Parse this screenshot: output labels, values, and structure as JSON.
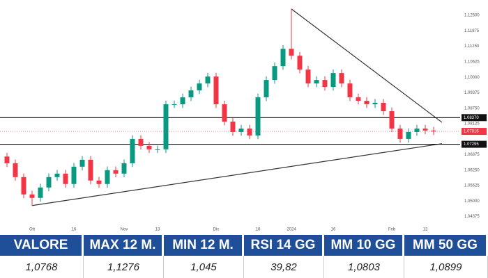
{
  "chart_data": {
    "type": "candlestick",
    "categories": [
      null,
      null,
      null,
      "Ott",
      null,
      null,
      null,
      null,
      "16",
      null,
      null,
      null,
      null,
      null,
      "Nov",
      null,
      null,
      null,
      "13",
      null,
      null,
      null,
      null,
      null,
      null,
      "Dic",
      null,
      null,
      null,
      null,
      "18",
      null,
      null,
      null,
      "2024",
      null,
      null,
      null,
      null,
      "16",
      null,
      null,
      null,
      null,
      null,
      null,
      "Feb",
      null,
      null,
      null,
      "12",
      null
    ],
    "open": [
      1.068,
      1.0653,
      1.0597,
      1.0527,
      1.0513,
      1.0555,
      1.0597,
      1.0611,
      1.0569,
      1.0639,
      1.0667,
      1.0583,
      1.0569,
      1.0625,
      1.0611,
      1.0653,
      1.0751,
      1.0723,
      1.0709,
      1.0709,
      1.0891,
      1.0891,
      1.0919,
      1.0947,
      1.0975,
      1.1003,
      1.0891,
      1.0821,
      1.0779,
      1.0793,
      1.0765,
      1.0919,
      1.0989,
      1.1045,
      1.1115,
      1.1087,
      1.1031,
      1.0975,
      1.0989,
      1.0961,
      1.1017,
      1.0975,
      1.0919,
      1.0905,
      1.0891,
      1.0897,
      1.0863,
      1.0793,
      1.0751,
      1.0779,
      1.0793,
      1.0785
    ],
    "high": [
      1.0695,
      1.0668,
      1.0612,
      1.0542,
      1.057,
      1.0612,
      1.0626,
      1.0626,
      1.0654,
      1.0682,
      1.0682,
      1.0598,
      1.064,
      1.064,
      1.0668,
      1.0766,
      1.0766,
      1.0738,
      1.0724,
      1.0906,
      1.0906,
      1.0934,
      1.0962,
      1.099,
      1.1018,
      1.1018,
      1.0906,
      1.0836,
      1.0808,
      1.0808,
      1.0934,
      1.1004,
      1.106,
      1.113,
      1.1276,
      1.1102,
      1.1046,
      1.1004,
      1.1004,
      1.1032,
      1.1032,
      1.099,
      1.0934,
      1.092,
      1.0912,
      1.0912,
      1.0878,
      1.0808,
      1.0794,
      1.0808,
      1.0808,
      1.08
    ],
    "low": [
      1.0638,
      1.0582,
      1.0512,
      1.0482,
      1.0498,
      1.054,
      1.0582,
      1.0554,
      1.0554,
      1.0624,
      1.0568,
      1.0554,
      1.0554,
      1.0596,
      1.0596,
      1.0638,
      1.0708,
      1.0694,
      1.0694,
      1.0694,
      1.0876,
      1.0876,
      1.0904,
      1.0932,
      1.096,
      1.0876,
      1.0806,
      1.0764,
      1.0764,
      1.075,
      1.075,
      1.0904,
      1.0974,
      1.103,
      1.1072,
      1.1016,
      1.096,
      1.096,
      1.0946,
      1.0946,
      1.096,
      1.0904,
      1.089,
      1.0876,
      1.0876,
      1.0848,
      1.0778,
      1.0736,
      1.0736,
      1.0764,
      1.077,
      1.07665
    ],
    "close": [
      1.0653,
      1.0597,
      1.0527,
      1.0513,
      1.0555,
      1.0597,
      1.0611,
      1.0569,
      1.0639,
      1.0667,
      1.0583,
      1.0569,
      1.0625,
      1.0611,
      1.0653,
      1.0751,
      1.0723,
      1.0709,
      1.0709,
      1.0891,
      1.0891,
      1.0919,
      1.0947,
      1.0975,
      1.1003,
      1.0891,
      1.0821,
      1.0779,
      1.0793,
      1.0765,
      1.0919,
      1.0989,
      1.1045,
      1.1115,
      1.1087,
      1.1031,
      1.0975,
      1.0989,
      1.0961,
      1.1017,
      1.0975,
      1.0919,
      1.0905,
      1.0891,
      1.0897,
      1.0863,
      1.0793,
      1.0751,
      1.0779,
      1.0793,
      1.0785,
      1.07815
    ],
    "up_color": "#089981",
    "down_color": "#f23645",
    "ylim": [
      1.04,
      1.1298
    ],
    "yticks": [
      {
        "value": 1.125,
        "label": "1.12500"
      },
      {
        "value": 1.11875,
        "label": "1.11875"
      },
      {
        "value": 1.1125,
        "label": "1.11250"
      },
      {
        "value": 1.10625,
        "label": "1.10625"
      },
      {
        "value": 1.1,
        "label": "1.10000"
      },
      {
        "value": 1.09375,
        "label": "1.09375"
      },
      {
        "value": 1.0875,
        "label": "1.08750"
      },
      {
        "value": 1.08125,
        "label": "1.08125"
      },
      {
        "value": 1.06875,
        "label": "1.06875"
      },
      {
        "value": 1.0625,
        "label": "1.06250"
      },
      {
        "value": 1.05625,
        "label": "1.05625"
      },
      {
        "value": 1.05,
        "label": "1.05000"
      },
      {
        "value": 1.04375,
        "label": "1.04375"
      }
    ],
    "grid": false,
    "levels": [
      {
        "value": 1.0837,
        "label": "1.08370"
      },
      {
        "value": 1.07295,
        "label": "1.07295"
      }
    ],
    "last_price": {
      "value": 1.07815,
      "label": "1.07815"
    },
    "trendlines": [
      {
        "x": [
          34,
          52
        ],
        "y": [
          1.1276,
          1.0818
        ]
      },
      {
        "x": [
          3,
          52
        ],
        "y": [
          1.0482,
          1.0732
        ]
      }
    ]
  },
  "table": {
    "headers": [
      "VALORE",
      "MAX 12 M.",
      "MIN 12 M.",
      "RSI 14 GG",
      "MM 10 GG",
      "MM 50 GG"
    ],
    "rows": [
      [
        "1,0768",
        "1,1276",
        "1,045",
        "39,82",
        "1,0803",
        "1,0899"
      ]
    ]
  }
}
